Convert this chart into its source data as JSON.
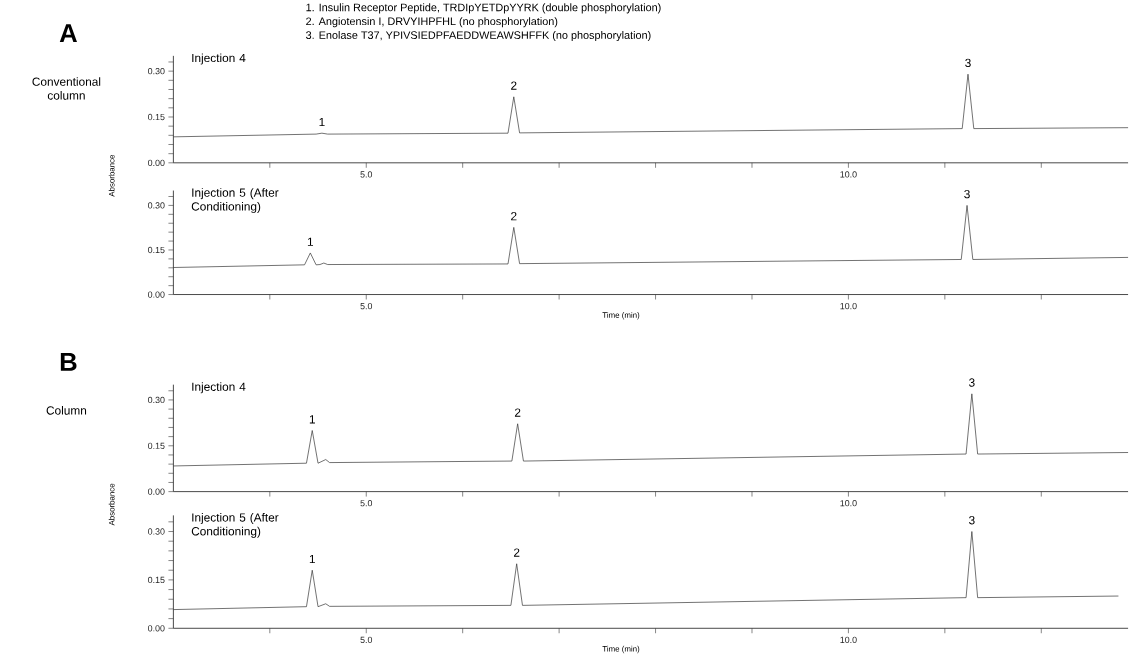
{
  "chart_data": [
    {
      "type": "line",
      "title": "Injection 4",
      "ylabel": "Absorbance",
      "color": "#333333",
      "xlim": [
        3.0,
        12.9
      ],
      "ylim": [
        0,
        0.35
      ],
      "xticks": [
        {
          "value": 4,
          "label": null
        },
        {
          "value": 5,
          "label": "5.0"
        },
        {
          "value": 6,
          "label": null
        },
        {
          "value": 7,
          "label": null
        },
        {
          "value": 8,
          "label": null
        },
        {
          "value": 9,
          "label": null
        },
        {
          "value": 10,
          "label": "10.0"
        },
        {
          "value": 11,
          "label": null
        },
        {
          "value": 12,
          "label": null
        }
      ],
      "yticks": [
        {
          "value": 0,
          "label": "0.00"
        },
        {
          "value": 0.03,
          "label": null
        },
        {
          "value": 0.06,
          "label": null
        },
        {
          "value": 0.09,
          "label": null
        },
        {
          "value": 0.12,
          "label": null
        },
        {
          "value": 0.15,
          "label": "0.15"
        },
        {
          "value": 0.18,
          "label": null
        },
        {
          "value": 0.21,
          "label": null
        },
        {
          "value": 0.24,
          "label": null
        },
        {
          "value": 0.27,
          "label": null
        },
        {
          "value": 0.3,
          "label": "0.30"
        },
        {
          "value": 0.33,
          "label": null
        }
      ],
      "x": [
        3.0,
        4.48,
        4.54,
        4.6,
        6.47,
        6.53,
        6.59,
        11.18,
        11.24,
        11.3,
        12.9
      ],
      "values": [
        0.085,
        0.094,
        0.097,
        0.094,
        0.097,
        0.216,
        0.098,
        0.112,
        0.29,
        0.112,
        0.115
      ],
      "annotations": [
        "A",
        "Conventional column",
        "1.   Insulin Receptor Peptide, TRDIpYETDpYYRK (double phosphorylation)",
        "2.   Angiotensin I, DRVYIHPFHL (no phosphorylation)",
        "3.   Enolase T37, YPIVSIEDPFAEDDWEAWSHFFK (no phosphorylation)",
        {
          "text": "1",
          "x": 4.54,
          "y": 0.097
        },
        {
          "text": "2",
          "x": 6.53,
          "y": 0.216
        },
        {
          "text": "3",
          "x": 11.24,
          "y": 0.29
        }
      ]
    },
    {
      "type": "line",
      "title": "Injection 5 (After Conditioning)",
      "xlabel": "Time (min)",
      "color": "#333333",
      "xlim": [
        3.0,
        12.9
      ],
      "ylim": [
        0,
        0.35
      ],
      "xticks": [
        {
          "value": 4,
          "label": null
        },
        {
          "value": 5,
          "label": "5.0"
        },
        {
          "value": 6,
          "label": null
        },
        {
          "value": 7,
          "label": null
        },
        {
          "value": 8,
          "label": null
        },
        {
          "value": 9,
          "label": null
        },
        {
          "value": 10,
          "label": "10.0"
        },
        {
          "value": 11,
          "label": null
        },
        {
          "value": 12,
          "label": null
        }
      ],
      "yticks": [
        {
          "value": 0,
          "label": "0.00"
        },
        {
          "value": 0.03,
          "label": null
        },
        {
          "value": 0.06,
          "label": null
        },
        {
          "value": 0.09,
          "label": null
        },
        {
          "value": 0.12,
          "label": null
        },
        {
          "value": 0.15,
          "label": "0.15"
        },
        {
          "value": 0.18,
          "label": null
        },
        {
          "value": 0.21,
          "label": null
        },
        {
          "value": 0.24,
          "label": null
        },
        {
          "value": 0.27,
          "label": null
        },
        {
          "value": 0.3,
          "label": "0.30"
        },
        {
          "value": 0.33,
          "label": null
        }
      ],
      "x": [
        3.0,
        4.36,
        4.42,
        4.48,
        4.52,
        4.56,
        4.6,
        6.47,
        6.53,
        6.59,
        11.17,
        11.23,
        11.29,
        12.9
      ],
      "values": [
        0.091,
        0.1,
        0.14,
        0.1,
        0.101,
        0.106,
        0.101,
        0.103,
        0.226,
        0.104,
        0.118,
        0.3,
        0.118,
        0.125
      ],
      "annotations": [
        {
          "text": "1",
          "x": 4.42,
          "y": 0.14
        },
        {
          "text": "2",
          "x": 6.53,
          "y": 0.226
        },
        {
          "text": "3",
          "x": 11.23,
          "y": 0.3
        }
      ]
    },
    {
      "type": "line",
      "title": "Injection 4",
      "ylabel": "Absorbance",
      "color": "#333333",
      "xlim": [
        3.0,
        12.9
      ],
      "ylim": [
        0,
        0.35
      ],
      "xticks": [
        {
          "value": 4,
          "label": null
        },
        {
          "value": 5,
          "label": "5.0"
        },
        {
          "value": 6,
          "label": null
        },
        {
          "value": 7,
          "label": null
        },
        {
          "value": 8,
          "label": null
        },
        {
          "value": 9,
          "label": null
        },
        {
          "value": 10,
          "label": "10.0"
        },
        {
          "value": 11,
          "label": null
        },
        {
          "value": 12,
          "label": null
        }
      ],
      "yticks": [
        {
          "value": 0,
          "label": "0.00"
        },
        {
          "value": 0.03,
          "label": null
        },
        {
          "value": 0.06,
          "label": null
        },
        {
          "value": 0.09,
          "label": null
        },
        {
          "value": 0.12,
          "label": null
        },
        {
          "value": 0.15,
          "label": "0.15"
        },
        {
          "value": 0.18,
          "label": null
        },
        {
          "value": 0.21,
          "label": null
        },
        {
          "value": 0.24,
          "label": null
        },
        {
          "value": 0.27,
          "label": null
        },
        {
          "value": 0.3,
          "label": "0.30"
        },
        {
          "value": 0.33,
          "label": null
        }
      ],
      "x": [
        3.0,
        4.38,
        4.44,
        4.5,
        4.58,
        4.62,
        6.51,
        6.57,
        6.63,
        11.22,
        11.28,
        11.34,
        12.9
      ],
      "values": [
        0.084,
        0.093,
        0.2,
        0.093,
        0.105,
        0.095,
        0.1,
        0.222,
        0.1,
        0.123,
        0.32,
        0.123,
        0.128
      ],
      "annotations": [
        "B",
        "Column",
        {
          "text": "1",
          "x": 4.44,
          "y": 0.2
        },
        {
          "text": "2",
          "x": 6.57,
          "y": 0.222
        },
        {
          "text": "3",
          "x": 11.28,
          "y": 0.32
        }
      ]
    },
    {
      "type": "line",
      "title": "Injection 5 (After Conditioning)",
      "xlabel": "Time (min)",
      "color": "#333333",
      "xlim": [
        3.0,
        12.9
      ],
      "ylim": [
        0,
        0.35
      ],
      "xticks": [
        {
          "value": 4,
          "label": null
        },
        {
          "value": 5,
          "label": "5.0"
        },
        {
          "value": 6,
          "label": null
        },
        {
          "value": 7,
          "label": null
        },
        {
          "value": 8,
          "label": null
        },
        {
          "value": 9,
          "label": null
        },
        {
          "value": 10,
          "label": "10.0"
        },
        {
          "value": 11,
          "label": null
        },
        {
          "value": 12,
          "label": null
        }
      ],
      "yticks": [
        {
          "value": 0,
          "label": "0.00"
        },
        {
          "value": 0.03,
          "label": null
        },
        {
          "value": 0.06,
          "label": null
        },
        {
          "value": 0.09,
          "label": null
        },
        {
          "value": 0.12,
          "label": null
        },
        {
          "value": 0.15,
          "label": "0.15"
        },
        {
          "value": 0.18,
          "label": null
        },
        {
          "value": 0.21,
          "label": null
        },
        {
          "value": 0.24,
          "label": null
        },
        {
          "value": 0.27,
          "label": null
        },
        {
          "value": 0.3,
          "label": "0.30"
        },
        {
          "value": 0.33,
          "label": null
        }
      ],
      "x": [
        3.0,
        4.38,
        4.44,
        4.5,
        4.58,
        4.62,
        6.5,
        6.56,
        6.62,
        11.22,
        11.28,
        11.34,
        12.8
      ],
      "values": [
        0.058,
        0.067,
        0.18,
        0.067,
        0.076,
        0.068,
        0.071,
        0.2,
        0.071,
        0.095,
        0.3,
        0.095,
        0.1
      ],
      "annotations": [
        {
          "text": "1",
          "x": 4.44,
          "y": 0.18
        },
        {
          "text": "2",
          "x": 6.56,
          "y": 0.2
        },
        {
          "text": "3",
          "x": 11.28,
          "y": 0.3
        }
      ]
    }
  ]
}
